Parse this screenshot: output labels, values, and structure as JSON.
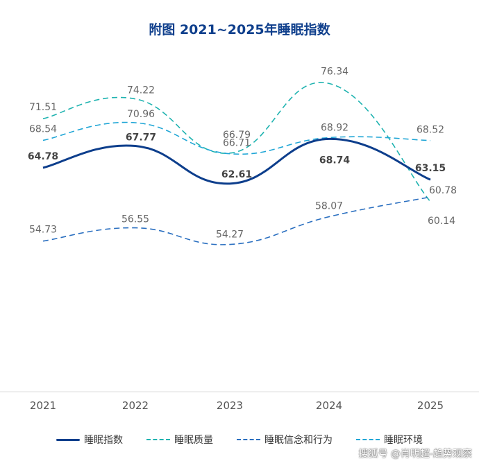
{
  "chart_data": {
    "type": "line",
    "title": "附图  2021~2025年睡眠指数",
    "xlabel": "",
    "ylabel": "",
    "x": [
      "2021",
      "2022",
      "2023",
      "2024",
      "2025"
    ],
    "grid": false,
    "legend_position": "bottom",
    "series": [
      {
        "name": "睡眠指数",
        "values": [
          64.78,
          67.77,
          62.61,
          68.74,
          63.15
        ],
        "color": "#0d3e8c",
        "style": "solid",
        "bold_labels": true
      },
      {
        "name": "睡眠质量",
        "values": [
          71.51,
          74.22,
          66.79,
          76.34,
          60.14
        ],
        "color": "#1fb3b0",
        "style": "dashed",
        "bold_labels": false
      },
      {
        "name": "睡眠信念和行为",
        "values": [
          54.73,
          56.55,
          54.27,
          58.07,
          60.78
        ],
        "color": "#2a6fc0",
        "style": "dashed",
        "bold_labels": false
      },
      {
        "name": "睡眠环境",
        "values": [
          68.54,
          70.96,
          66.71,
          68.92,
          68.52
        ],
        "color": "#20a6d6",
        "style": "dashed",
        "bold_labels": false
      }
    ]
  },
  "watermark": "搜狐号 @肖明超-趋势观察"
}
